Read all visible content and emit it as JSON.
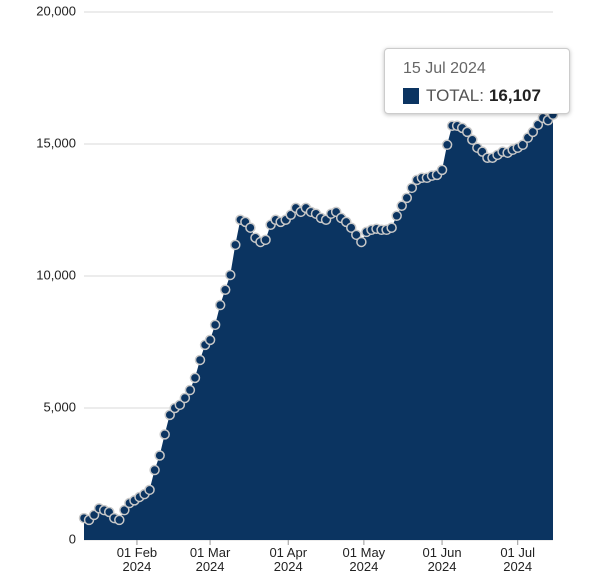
{
  "chart_data": {
    "type": "area",
    "x": [
      "2024-01-11",
      "2024-01-13",
      "2024-01-15",
      "2024-01-17",
      "2024-01-19",
      "2024-01-21",
      "2024-01-23",
      "2024-01-25",
      "2024-01-27",
      "2024-01-29",
      "2024-01-31",
      "2024-02-02",
      "2024-02-04",
      "2024-02-06",
      "2024-02-08",
      "2024-02-10",
      "2024-02-12",
      "2024-02-14",
      "2024-02-16",
      "2024-02-18",
      "2024-02-20",
      "2024-02-22",
      "2024-02-24",
      "2024-02-26",
      "2024-02-28",
      "2024-03-01",
      "2024-03-03",
      "2024-03-05",
      "2024-03-07",
      "2024-03-09",
      "2024-03-11",
      "2024-03-13",
      "2024-03-15",
      "2024-03-17",
      "2024-03-19",
      "2024-03-21",
      "2024-03-23",
      "2024-03-25",
      "2024-03-27",
      "2024-03-29",
      "2024-03-31",
      "2024-04-02",
      "2024-04-04",
      "2024-04-06",
      "2024-04-08",
      "2024-04-10",
      "2024-04-12",
      "2024-04-14",
      "2024-04-16",
      "2024-04-18",
      "2024-04-20",
      "2024-04-22",
      "2024-04-24",
      "2024-04-26",
      "2024-04-28",
      "2024-04-30",
      "2024-05-02",
      "2024-05-04",
      "2024-05-06",
      "2024-05-08",
      "2024-05-10",
      "2024-05-12",
      "2024-05-14",
      "2024-05-16",
      "2024-05-18",
      "2024-05-20",
      "2024-05-22",
      "2024-05-24",
      "2024-05-26",
      "2024-05-28",
      "2024-05-30",
      "2024-06-01",
      "2024-06-03",
      "2024-06-05",
      "2024-06-07",
      "2024-06-09",
      "2024-06-11",
      "2024-06-13",
      "2024-06-15",
      "2024-06-17",
      "2024-06-19",
      "2024-06-21",
      "2024-06-23",
      "2024-06-25",
      "2024-06-27",
      "2024-06-29",
      "2024-07-01",
      "2024-07-03",
      "2024-07-05",
      "2024-07-07",
      "2024-07-09",
      "2024-07-11",
      "2024-07-13",
      "2024-07-15"
    ],
    "series": [
      {
        "name": "TOTAL",
        "color": "#0b3461",
        "values": [
          830,
          760,
          950,
          1200,
          1130,
          1060,
          830,
          760,
          1130,
          1400,
          1500,
          1630,
          1740,
          1900,
          2650,
          3200,
          4000,
          4740,
          5000,
          5120,
          5380,
          5680,
          6140,
          6820,
          7390,
          7580,
          8150,
          8900,
          9480,
          10040,
          11180,
          12130,
          12050,
          11830,
          11450,
          11290,
          11370,
          11940,
          12130,
          12050,
          12130,
          12320,
          12580,
          12430,
          12580,
          12430,
          12360,
          12200,
          12130,
          12360,
          12430,
          12200,
          12050,
          11830,
          11560,
          11290,
          11670,
          11750,
          11790,
          11750,
          11750,
          11830,
          12280,
          12660,
          12960,
          13340,
          13640,
          13720,
          13720,
          13800,
          13830,
          14020,
          14970,
          15690,
          15690,
          15610,
          15460,
          15160,
          14860,
          14710,
          14480,
          14480,
          14590,
          14710,
          14670,
          14780,
          14860,
          14970,
          15240,
          15460,
          15730,
          15990,
          15900,
          16107
        ]
      }
    ],
    "xlim": [
      "2024-01-11",
      "2024-07-15"
    ],
    "xticks": [
      {
        "value": "2024-02-01",
        "label": "01 Feb 2024"
      },
      {
        "value": "2024-03-01",
        "label": "01 Mar 2024"
      },
      {
        "value": "2024-04-01",
        "label": "01 Apr 2024"
      },
      {
        "value": "2024-05-01",
        "label": "01 May 2024"
      },
      {
        "value": "2024-06-01",
        "label": "01 Jun 2024"
      },
      {
        "value": "2024-07-01",
        "label": "01 Jul 2024"
      }
    ],
    "ylim": [
      0,
      20000
    ],
    "yticks": [
      0,
      {
        "value": 5000,
        "label": "5,000"
      },
      {
        "value": 10000,
        "label": "10,000"
      },
      {
        "value": 15000,
        "label": "15,000"
      },
      {
        "value": 20000,
        "label": "20,000"
      }
    ],
    "grid": true,
    "tooltip": {
      "date": "15 Jul 2024",
      "series": "TOTAL",
      "value": 16107,
      "value_label": "16,107"
    }
  }
}
